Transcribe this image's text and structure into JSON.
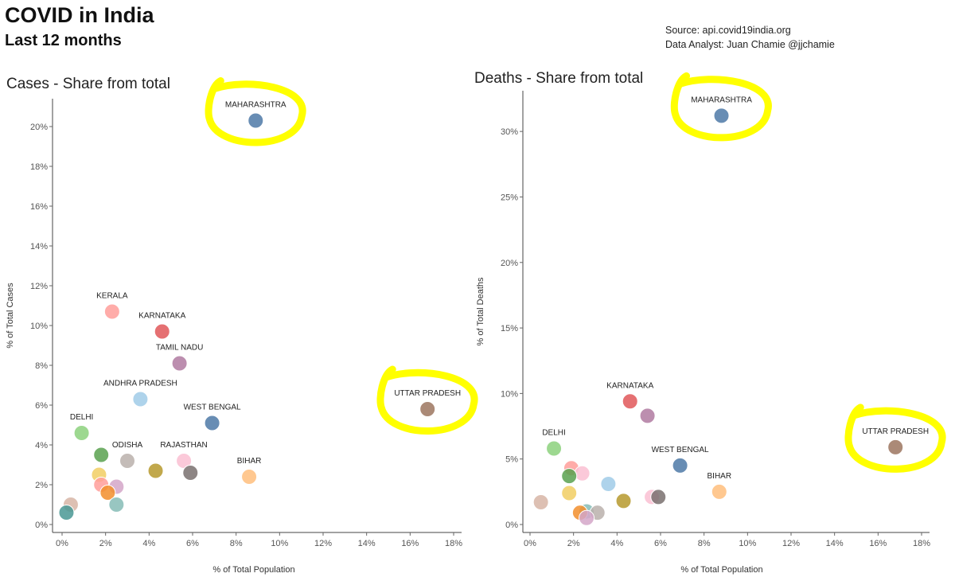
{
  "header": {
    "title": "COVID in India",
    "subtitle": "Last 12 months",
    "source": "Source: api.covid19india.org",
    "analyst": "Data Analyst:  Juan Chamie @jjchamie"
  },
  "colors": {
    "highlight": "#ffff00"
  },
  "chart_data": [
    {
      "type": "scatter",
      "title": "Cases - Share from total",
      "xlabel": "% of Total Population",
      "ylabel": "% of Total Cases",
      "xlim": [
        0,
        18
      ],
      "ylim": [
        0,
        21
      ],
      "xticks": [
        0,
        2,
        4,
        6,
        8,
        10,
        12,
        14,
        16,
        18
      ],
      "yticks": [
        0,
        2,
        4,
        6,
        8,
        10,
        12,
        14,
        16,
        18,
        20
      ],
      "tick_suffix": "%",
      "highlighted": [
        "MAHARASHTRA",
        "UTTAR PRADESH"
      ],
      "points": [
        {
          "label": "MAHARASHTRA",
          "x": 8.9,
          "y": 20.3,
          "color": "#4e79a7"
        },
        {
          "label": "KERALA",
          "x": 2.3,
          "y": 10.7,
          "color": "#ff9d9a"
        },
        {
          "label": "KARNATAKA",
          "x": 4.6,
          "y": 9.7,
          "color": "#e15759"
        },
        {
          "label": "TAMIL NADU",
          "x": 5.4,
          "y": 8.1,
          "color": "#b07aa1"
        },
        {
          "label": "ANDHRA PRADESH",
          "x": 3.6,
          "y": 6.3,
          "color": "#a0cbe8"
        },
        {
          "label": "UTTAR PRADESH",
          "x": 16.8,
          "y": 5.8,
          "color": "#9c755f"
        },
        {
          "label": "WEST BENGAL",
          "x": 6.9,
          "y": 5.1,
          "color": "#4e79a7"
        },
        {
          "label": "DELHI",
          "x": 0.9,
          "y": 4.6,
          "color": "#8cd17d"
        },
        {
          "label": "ODISHA",
          "x": 3.0,
          "y": 3.2,
          "color": "#bab0ac"
        },
        {
          "label": "RAJASTHAN",
          "x": 5.6,
          "y": 3.2,
          "color": "#fabfd2"
        },
        {
          "label": "BIHAR",
          "x": 8.6,
          "y": 2.4,
          "color": "#ffbe7d"
        },
        {
          "label": "",
          "x": 1.8,
          "y": 3.5,
          "color": "#59a14f"
        },
        {
          "label": "",
          "x": 4.3,
          "y": 2.7,
          "color": "#b6992d"
        },
        {
          "label": "",
          "x": 5.9,
          "y": 2.6,
          "color": "#79706e"
        },
        {
          "label": "",
          "x": 1.7,
          "y": 2.5,
          "color": "#f1ce63"
        },
        {
          "label": "",
          "x": 1.8,
          "y": 2.0,
          "color": "#ff9d9a"
        },
        {
          "label": "",
          "x": 2.5,
          "y": 1.9,
          "color": "#d4a6c8"
        },
        {
          "label": "",
          "x": 2.1,
          "y": 1.6,
          "color": "#f28e2b"
        },
        {
          "label": "",
          "x": 0.4,
          "y": 1.0,
          "color": "#d7b5a6"
        },
        {
          "label": "",
          "x": 2.5,
          "y": 1.0,
          "color": "#86bcb6"
        },
        {
          "label": "",
          "x": 0.2,
          "y": 0.6,
          "color": "#499894"
        }
      ]
    },
    {
      "type": "scatter",
      "title": "Deaths - Share from total",
      "xlabel": "% of Total Population",
      "ylabel": "% of Total Deaths",
      "xlim": [
        0,
        18
      ],
      "ylim": [
        0,
        32.5
      ],
      "xticks": [
        0,
        2,
        4,
        6,
        8,
        10,
        12,
        14,
        16,
        18
      ],
      "yticks": [
        0,
        5,
        10,
        15,
        20,
        25,
        30
      ],
      "tick_suffix": "%",
      "highlighted": [
        "MAHARASHTRA",
        "UTTAR PRADESH"
      ],
      "points": [
        {
          "label": "MAHARASHTRA",
          "x": 8.8,
          "y": 31.2,
          "color": "#4e79a7"
        },
        {
          "label": "KARNATAKA",
          "x": 4.6,
          "y": 9.4,
          "color": "#e15759"
        },
        {
          "label": "",
          "x": 5.4,
          "y": 8.3,
          "color": "#b07aa1"
        },
        {
          "label": "UTTAR PRADESH",
          "x": 16.8,
          "y": 5.9,
          "color": "#9c755f"
        },
        {
          "label": "DELHI",
          "x": 1.1,
          "y": 5.8,
          "color": "#8cd17d"
        },
        {
          "label": "WEST BENGAL",
          "x": 6.9,
          "y": 4.5,
          "color": "#4e79a7"
        },
        {
          "label": "BIHAR",
          "x": 8.7,
          "y": 2.5,
          "color": "#ffbe7d"
        },
        {
          "label": "",
          "x": 1.9,
          "y": 4.3,
          "color": "#ff9d9a"
        },
        {
          "label": "",
          "x": 2.4,
          "y": 3.9,
          "color": "#fabfd2"
        },
        {
          "label": "",
          "x": 1.8,
          "y": 3.7,
          "color": "#59a14f"
        },
        {
          "label": "",
          "x": 3.6,
          "y": 3.1,
          "color": "#a0cbe8"
        },
        {
          "label": "",
          "x": 1.8,
          "y": 2.4,
          "color": "#f1ce63"
        },
        {
          "label": "",
          "x": 4.3,
          "y": 1.8,
          "color": "#b6992d"
        },
        {
          "label": "",
          "x": 5.6,
          "y": 2.1,
          "color": "#fabfd2"
        },
        {
          "label": "",
          "x": 5.9,
          "y": 2.1,
          "color": "#79706e"
        },
        {
          "label": "",
          "x": 0.5,
          "y": 1.7,
          "color": "#d7b5a6"
        },
        {
          "label": "",
          "x": 2.6,
          "y": 1.0,
          "color": "#86bcb6"
        },
        {
          "label": "",
          "x": 2.3,
          "y": 0.9,
          "color": "#f28e2b"
        },
        {
          "label": "",
          "x": 3.1,
          "y": 0.9,
          "color": "#bab0ac"
        },
        {
          "label": "",
          "x": 2.6,
          "y": 0.5,
          "color": "#d4a6c8"
        }
      ]
    }
  ]
}
